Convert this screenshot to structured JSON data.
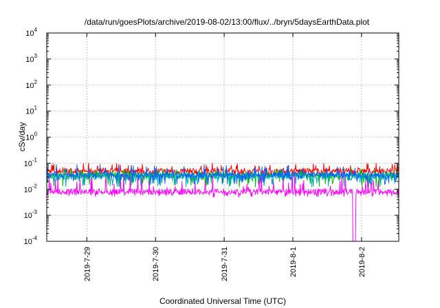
{
  "chart_data": {
    "type": "line",
    "title": "/data/run/goesPlots/archive/2019-08-02/13:00/flux/../bryn/5daysEarthData.plot",
    "xlabel": "Coordinated Universal Time (UTC)",
    "ylabel": "cSv/day",
    "yscale": "log",
    "ylim": [
      0.0001,
      10000
    ],
    "xlim": [
      "2019-07-28T10:00",
      "2019-08-02T13:00"
    ],
    "grid": true,
    "x_ticks": [
      "2019-7-29",
      "2019-7-30",
      "2019-7-31",
      "2019-8-1",
      "2019-8-2"
    ],
    "y_ticks": [
      {
        "base": "10",
        "exp": "-4"
      },
      {
        "base": "10",
        "exp": "-3"
      },
      {
        "base": "10",
        "exp": "-2"
      },
      {
        "base": "10",
        "exp": "-1"
      },
      {
        "base": "10",
        "exp": "0"
      },
      {
        "base": "10",
        "exp": "1"
      },
      {
        "base": "10",
        "exp": "2"
      },
      {
        "base": "10",
        "exp": "3"
      },
      {
        "base": "10",
        "exp": "4"
      }
    ],
    "series": [
      {
        "color": "#ff0000",
        "typical": 0.05,
        "low": 0.03,
        "high": 0.1
      },
      {
        "color": "#00c000",
        "typical": 0.035,
        "low": 0.012,
        "high": 0.06
      },
      {
        "color": "#00b0b0",
        "typical": 0.03,
        "low": 0.012,
        "high": 0.05
      },
      {
        "color": "#0060ff",
        "typical": 0.035,
        "low": 0.015,
        "high": 0.09
      },
      {
        "color": "#ff00ff",
        "typical": 0.008,
        "low": 0.005,
        "high": 0.04
      }
    ],
    "features": {
      "dropout": {
        "start": "2019-08-01T21:00",
        "end": "2019-08-01T22:00",
        "value": 0.0001
      }
    }
  }
}
